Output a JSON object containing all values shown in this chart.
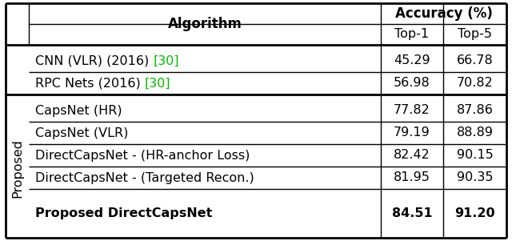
{
  "header_top": "Accuracy (%)",
  "header_sub": [
    "Top-1",
    "Top-5"
  ],
  "col_header": "Algorithm",
  "rows_ref": [
    {
      "algo_before": "CNN (VLR) (2016) ",
      "algo_ref": "[30]",
      "top1": "45.29",
      "top5": "66.78"
    },
    {
      "algo_before": "RPC Nets (2016) ",
      "algo_ref": "[30]",
      "top1": "56.98",
      "top5": "70.82"
    }
  ],
  "rows_proposed": [
    {
      "algo": "CapsNet (HR)",
      "top1": "77.82",
      "top5": "87.86",
      "bold": false
    },
    {
      "algo": "CapsNet (VLR)",
      "top1": "79.19",
      "top5": "88.89",
      "bold": false
    },
    {
      "algo": "DirectCapsNet - (HR-anchor Loss)",
      "top1": "82.42",
      "top5": "90.15",
      "bold": false
    },
    {
      "algo": "DirectCapsNet - (Targeted Recon.)",
      "top1": "81.95",
      "top5": "90.35",
      "bold": false
    },
    {
      "algo": "Proposed DirectCapsNet",
      "top1": "84.51",
      "top5": "91.20",
      "bold": true
    }
  ],
  "ref_color": "#00bb00",
  "text_color": "#000000",
  "bg_color": "#ffffff",
  "line_color": "#000000"
}
